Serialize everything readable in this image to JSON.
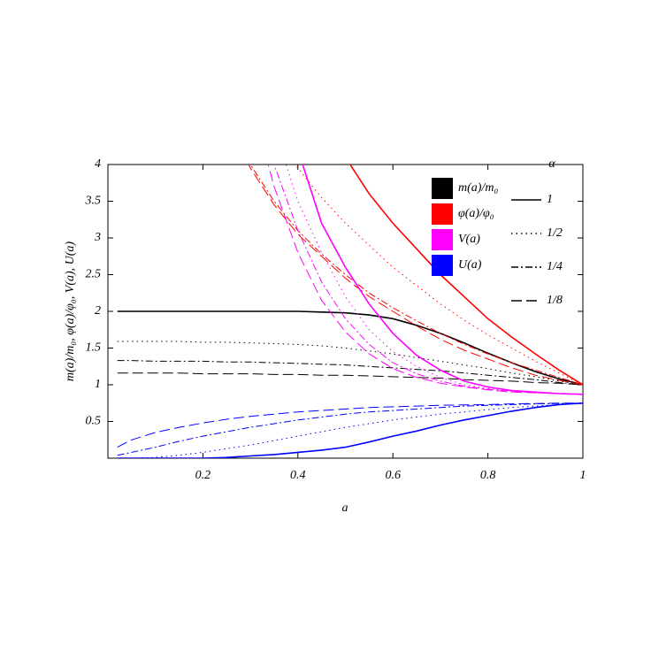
{
  "chart_data": {
    "type": "line",
    "x_label": "a",
    "y_label": "m(a)/m₀, φ(a)/φ₀, V(a), U(a)",
    "xlim": [
      0,
      1
    ],
    "ylim": [
      0,
      4
    ],
    "xticks": [
      0.2,
      0.4,
      0.6,
      0.8,
      1
    ],
    "yticks": [
      0.5,
      1,
      1.5,
      2,
      2.5,
      3,
      3.5,
      4
    ],
    "legend_title": "α",
    "alphas": [
      {
        "label": "1",
        "dash": "solid"
      },
      {
        "label": "1/2",
        "dash": "dotted"
      },
      {
        "label": "1/4",
        "dash": "dashdot"
      },
      {
        "label": "1/8",
        "dash": "dashed"
      }
    ],
    "x": [
      0.02,
      0.05,
      0.1,
      0.15,
      0.2,
      0.25,
      0.3,
      0.35,
      0.4,
      0.45,
      0.5,
      0.55,
      0.6,
      0.65,
      0.7,
      0.75,
      0.8,
      0.85,
      0.9,
      0.95,
      1
    ],
    "quantities": [
      {
        "name": "m(a)/m₀",
        "color": "#000000",
        "curves": [
          [
            2,
            2,
            2,
            2,
            2,
            2,
            2,
            2,
            2,
            1.99,
            1.98,
            1.95,
            1.9,
            1.81,
            1.7,
            1.57,
            1.43,
            1.3,
            1.18,
            1.08,
            1
          ],
          [
            1.59,
            1.59,
            1.59,
            1.59,
            1.58,
            1.58,
            1.57,
            1.56,
            1.55,
            1.53,
            1.5,
            1.46,
            1.42,
            1.37,
            1.32,
            1.27,
            1.22,
            1.16,
            1.11,
            1.05,
            1
          ],
          [
            1.33,
            1.33,
            1.32,
            1.32,
            1.32,
            1.31,
            1.31,
            1.3,
            1.29,
            1.28,
            1.27,
            1.25,
            1.23,
            1.21,
            1.19,
            1.16,
            1.13,
            1.1,
            1.07,
            1.03,
            1
          ],
          [
            1.16,
            1.16,
            1.16,
            1.16,
            1.15,
            1.15,
            1.15,
            1.14,
            1.14,
            1.13,
            1.13,
            1.12,
            1.11,
            1.1,
            1.09,
            1.07,
            1.06,
            1.05,
            1.03,
            1.02,
            1
          ]
        ]
      },
      {
        "name": "φ(a)/φ₀",
        "color": "#ff0000",
        "curves": [
          [
            null,
            null,
            null,
            null,
            null,
            null,
            null,
            null,
            null,
            null,
            4.1,
            3.6,
            3.2,
            2.85,
            2.5,
            2.2,
            1.9,
            1.65,
            1.42,
            1.2,
            1
          ],
          [
            null,
            null,
            null,
            null,
            null,
            null,
            null,
            4.4,
            3.95,
            3.55,
            3.2,
            2.9,
            2.6,
            2.35,
            2.1,
            1.88,
            1.68,
            1.5,
            1.32,
            1.16,
            1
          ],
          [
            null,
            null,
            null,
            null,
            null,
            4.6,
            4.0,
            3.5,
            3.1,
            2.78,
            2.5,
            2.25,
            2.05,
            1.87,
            1.7,
            1.55,
            1.42,
            1.3,
            1.2,
            1.1,
            1
          ],
          [
            null,
            null,
            null,
            null,
            null,
            4.6,
            3.95,
            3.45,
            3.05,
            2.75,
            2.45,
            2.2,
            2.0,
            1.8,
            1.62,
            1.47,
            1.35,
            1.23,
            1.13,
            1.06,
            1
          ]
        ]
      },
      {
        "name": "V(a)",
        "color": "#ff00ff",
        "curves": [
          [
            null,
            null,
            null,
            null,
            null,
            null,
            null,
            5.2,
            4.2,
            3.2,
            2.6,
            2.1,
            1.7,
            1.4,
            1.2,
            1.05,
            0.97,
            0.92,
            0.9,
            0.88,
            0.87
          ],
          [
            null,
            null,
            null,
            null,
            null,
            null,
            null,
            4.5,
            3.5,
            2.8,
            2.2,
            1.75,
            1.45,
            1.25,
            1.1,
            1.0,
            0.95,
            0.92,
            0.9,
            0.88,
            0.87
          ],
          [
            null,
            null,
            null,
            null,
            null,
            null,
            5.2,
            4.0,
            3.1,
            2.4,
            1.9,
            1.55,
            1.3,
            1.15,
            1.05,
            0.98,
            0.94,
            0.91,
            0.89,
            0.88,
            0.87
          ],
          [
            null,
            null,
            null,
            null,
            null,
            null,
            4.9,
            3.7,
            2.8,
            2.15,
            1.72,
            1.42,
            1.22,
            1.1,
            1.02,
            0.97,
            0.93,
            0.9,
            0.89,
            0.88,
            0.87
          ]
        ]
      },
      {
        "name": "U(a)",
        "color": "#0000ff",
        "curves": [
          [
            0,
            0,
            0,
            0,
            0,
            0.01,
            0.03,
            0.05,
            0.08,
            0.11,
            0.15,
            0.22,
            0.3,
            0.37,
            0.45,
            0.52,
            0.58,
            0.64,
            0.69,
            0.73,
            0.75
          ],
          [
            0,
            0,
            0.01,
            0.04,
            0.08,
            0.13,
            0.18,
            0.24,
            0.3,
            0.36,
            0.42,
            0.47,
            0.52,
            0.56,
            0.6,
            0.63,
            0.66,
            0.69,
            0.71,
            0.73,
            0.75
          ],
          [
            0.04,
            0.08,
            0.15,
            0.23,
            0.3,
            0.36,
            0.42,
            0.47,
            0.52,
            0.56,
            0.6,
            0.63,
            0.65,
            0.67,
            0.69,
            0.71,
            0.72,
            0.73,
            0.74,
            0.745,
            0.75
          ],
          [
            0.15,
            0.25,
            0.35,
            0.42,
            0.48,
            0.53,
            0.57,
            0.6,
            0.63,
            0.65,
            0.67,
            0.69,
            0.7,
            0.71,
            0.72,
            0.725,
            0.73,
            0.74,
            0.745,
            0.75,
            0.75
          ]
        ]
      }
    ]
  }
}
